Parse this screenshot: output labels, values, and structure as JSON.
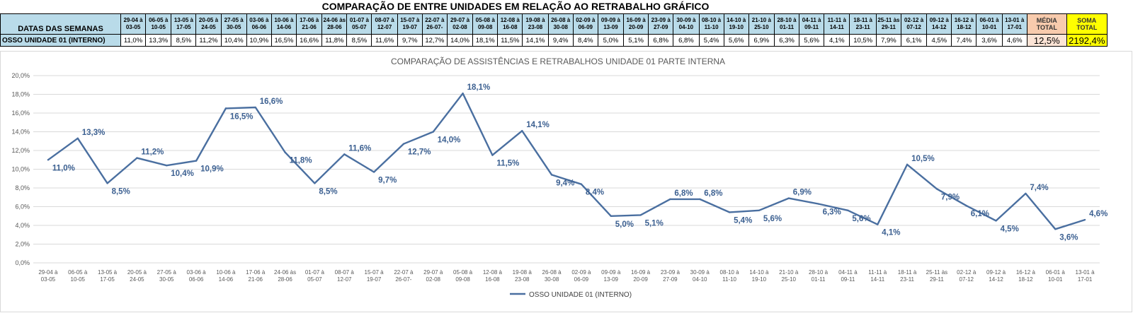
{
  "sheet": {
    "title": "COMPARAÇÃO DE ENTRE UNIDADES EM RELAÇÃO AO RETRABALHO GRÁFICO",
    "header_label": "DATAS DAS SEMANAS",
    "row_label": "OSSO UNIDADE 01 (INTERNO)",
    "weeks": [
      [
        "29-04 à",
        "03-05"
      ],
      [
        "06-05 à",
        "10-05"
      ],
      [
        "13-05 à",
        "17-05"
      ],
      [
        "20-05 à",
        "24-05"
      ],
      [
        "27-05 à",
        "30-05"
      ],
      [
        "03-06 à",
        "06-06"
      ],
      [
        "10-06 à",
        "14-06"
      ],
      [
        "17-06 à",
        "21-06"
      ],
      [
        "24-06 às",
        "28-06"
      ],
      [
        "01-07 à",
        "05-07"
      ],
      [
        "08-07 à",
        "12-07"
      ],
      [
        "15-07 à",
        "19-07"
      ],
      [
        "22-07 à",
        "26-07-"
      ],
      [
        "29-07 à",
        "02-08"
      ],
      [
        "05-08 à",
        "09-08"
      ],
      [
        "12-08 à",
        "16-08"
      ],
      [
        "19-08 à",
        "23-08"
      ],
      [
        "26-08 à",
        "30-08"
      ],
      [
        "02-09 à",
        "06-09"
      ],
      [
        "09-09 à",
        "13-09"
      ],
      [
        "16-09 à",
        "20-09"
      ],
      [
        "23-09 à",
        "27-09"
      ],
      [
        "30-09 à",
        "04-10"
      ],
      [
        "08-10 à",
        "11-10"
      ],
      [
        "14-10 à",
        "19-10"
      ],
      [
        "21-10 à",
        "25-10"
      ],
      [
        "28-10 à",
        "01-11"
      ],
      [
        "04-11 à",
        "09-11"
      ],
      [
        "11-11 à",
        "14-11"
      ],
      [
        "18-11 à",
        "23-11"
      ],
      [
        "25-11 às",
        "29-11"
      ],
      [
        "02-12 à",
        "07-12"
      ],
      [
        "09-12 à",
        "14-12"
      ],
      [
        "16-12 à",
        "18-12"
      ],
      [
        "06-01 à",
        "10-01"
      ],
      [
        "13-01 à",
        "17-01"
      ]
    ],
    "values": [
      "11,0%",
      "13,3%",
      "8,5%",
      "11,2%",
      "10,4%",
      "10,9%",
      "16,5%",
      "16,6%",
      "11,8%",
      "8,5%",
      "11,6%",
      "9,7%",
      "12,7%",
      "14,0%",
      "18,1%",
      "11,5%",
      "14,1%",
      "9,4%",
      "8,4%",
      "5,0%",
      "5,1%",
      "6,8%",
      "6,8%",
      "5,4%",
      "5,6%",
      "6,9%",
      "6,3%",
      "5,6%",
      "4,1%",
      "10,5%",
      "7,9%",
      "6,1%",
      "4,5%",
      "7,4%",
      "3,6%",
      "4,6%"
    ],
    "media_label": [
      "MÉDIA",
      "TOTAL"
    ],
    "media_value": "12,5%",
    "soma_label": [
      "SOMA",
      "TOTAL"
    ],
    "soma_value": "2192,4%",
    "colors": {
      "header_bg": "#b9dbe9",
      "media_header": "#f8cbad",
      "media_value": "#fce4d6",
      "soma": "#ffff00"
    }
  },
  "chart_data": {
    "type": "line",
    "title": "COMPARAÇÃO DE ASSISTÊNCIAS E RETRABALHOS UNIDADE 01 PARTE INTERNA",
    "categories": [
      [
        "29-04 à",
        "03-05"
      ],
      [
        "06-05 à",
        "10-05"
      ],
      [
        "13-05 à",
        "17-05"
      ],
      [
        "20-05 à",
        "24-05"
      ],
      [
        "27-05 à",
        "30-05"
      ],
      [
        "03-06 à",
        "06-06"
      ],
      [
        "10-06 à",
        "14-06"
      ],
      [
        "17-06 à",
        "21-06"
      ],
      [
        "24-06 às",
        "28-06"
      ],
      [
        "01-07 à",
        "05-07"
      ],
      [
        "08-07 à",
        "12-07"
      ],
      [
        "15-07 à",
        "19-07"
      ],
      [
        "22-07 à",
        "26-07-"
      ],
      [
        "29-07 à",
        "02-08"
      ],
      [
        "05-08 à",
        "09-08"
      ],
      [
        "12-08 à",
        "16-08"
      ],
      [
        "19-08 à",
        "23-08"
      ],
      [
        "26-08 à",
        "30-08"
      ],
      [
        "02-09 à",
        "06-09"
      ],
      [
        "09-09 à",
        "13-09"
      ],
      [
        "16-09 à",
        "20-09"
      ],
      [
        "23-09 à",
        "27-09"
      ],
      [
        "30-09 à",
        "04-10"
      ],
      [
        "08-10 à",
        "11-10"
      ],
      [
        "14-10 à",
        "19-10"
      ],
      [
        "21-10 à",
        "25-10"
      ],
      [
        "28-10 à",
        "01-11"
      ],
      [
        "04-11 à",
        "09-11"
      ],
      [
        "11-11 à",
        "14-11"
      ],
      [
        "18-11 à",
        "23-11"
      ],
      [
        "25-11 às",
        "29-11"
      ],
      [
        "02-12 à",
        "07-12"
      ],
      [
        "09-12 à",
        "14-12"
      ],
      [
        "16-12 à",
        "18-12"
      ],
      [
        "06-01 à",
        "10-01"
      ],
      [
        "13-01 à",
        "17-01"
      ]
    ],
    "series": [
      {
        "name": "OSSO UNIDADE 01 (INTERNO)",
        "color": "#4a6fa0",
        "values": [
          11.0,
          13.3,
          8.5,
          11.2,
          10.4,
          10.9,
          16.5,
          16.6,
          11.8,
          8.5,
          11.6,
          9.7,
          12.7,
          14.0,
          18.1,
          11.5,
          14.1,
          9.4,
          8.4,
          5.0,
          5.1,
          6.8,
          6.8,
          5.4,
          5.6,
          6.9,
          6.3,
          5.6,
          4.1,
          10.5,
          7.9,
          6.1,
          4.5,
          7.4,
          3.6,
          4.6
        ],
        "labels": [
          "11,0%",
          "13,3%",
          "8,5%",
          "11,2%",
          "10,4%",
          "10,9%",
          "16,5%",
          "16,6%",
          "11,8%",
          "8,5%",
          "11,6%",
          "9,7%",
          "12,7%",
          "14,0%",
          "18,1%",
          "11,5%",
          "14,1%",
          "9,4%",
          "8,4%",
          "5,0%",
          "5,1%",
          "6,8%",
          "6,8%",
          "5,4%",
          "5,6%",
          "6,9%",
          "6,3%",
          "5,6%",
          "4,1%",
          "10,5%",
          "7,9%",
          "6,1%",
          "4,5%",
          "7,4%",
          "3,6%",
          "4,6%"
        ]
      }
    ],
    "yticks": [
      "0,0%",
      "2,0%",
      "4,0%",
      "6,0%",
      "8,0%",
      "10,0%",
      "12,0%",
      "14,0%",
      "16,0%",
      "18,0%",
      "20,0%"
    ],
    "ylim": [
      0,
      20
    ],
    "grid": true,
    "legend_position": "bottom",
    "xlabel": "",
    "ylabel": ""
  }
}
